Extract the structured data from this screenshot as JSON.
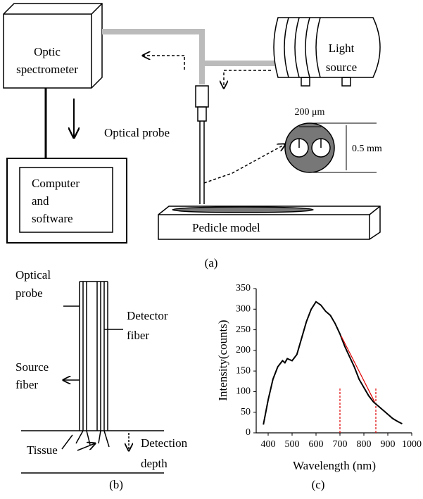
{
  "labels": {
    "spectrometer": [
      "Optic",
      "spectrometer"
    ],
    "computer": [
      "Computer",
      "and",
      "software"
    ],
    "light": [
      "Light",
      "source"
    ],
    "probe": "Optical probe",
    "fiber_gap": "200 μm",
    "fiber_size": "0.5 mm",
    "pedicle": "Pedicle model",
    "panel_a": "(a)",
    "optical_probe": [
      "Optical",
      "probe"
    ],
    "detector_fiber": [
      "Detector",
      "fiber"
    ],
    "source_fiber": [
      "Source",
      "fiber"
    ],
    "tissue": "Tissue",
    "detection_depth": [
      "Detection",
      "depth"
    ],
    "panel_b": "(b)",
    "panel_c": "(c)"
  },
  "chart_data": {
    "type": "line",
    "x_label": "Wavelength (nm)",
    "y_label": "Intensity(counts)",
    "x": [
      380,
      400,
      420,
      440,
      460,
      470,
      480,
      500,
      520,
      540,
      560,
      580,
      600,
      620,
      640,
      660,
      680,
      700,
      720,
      740,
      760,
      780,
      800,
      820,
      840,
      860,
      880,
      900,
      920,
      940,
      960
    ],
    "series": [
      {
        "color": "#000000",
        "values": [
          20,
          80,
          130,
          160,
          175,
          170,
          180,
          175,
          190,
          230,
          270,
          300,
          318,
          310,
          295,
          285,
          265,
          240,
          210,
          185,
          160,
          130,
          110,
          90,
          75,
          65,
          55,
          45,
          35,
          28,
          22
        ]
      }
    ],
    "fit": {
      "color": "#e00000",
      "x": [
        705,
        845
      ],
      "values": [
        235,
        75
      ]
    },
    "markers": {
      "color": "#e00000",
      "x": [
        700,
        850
      ]
    },
    "xlim": [
      350,
      1000
    ],
    "ylim": [
      0,
      350
    ],
    "xticks": [
      400,
      500,
      600,
      700,
      800,
      900,
      1000
    ],
    "yticks": [
      0,
      50,
      100,
      150,
      200,
      250,
      300,
      350
    ]
  }
}
